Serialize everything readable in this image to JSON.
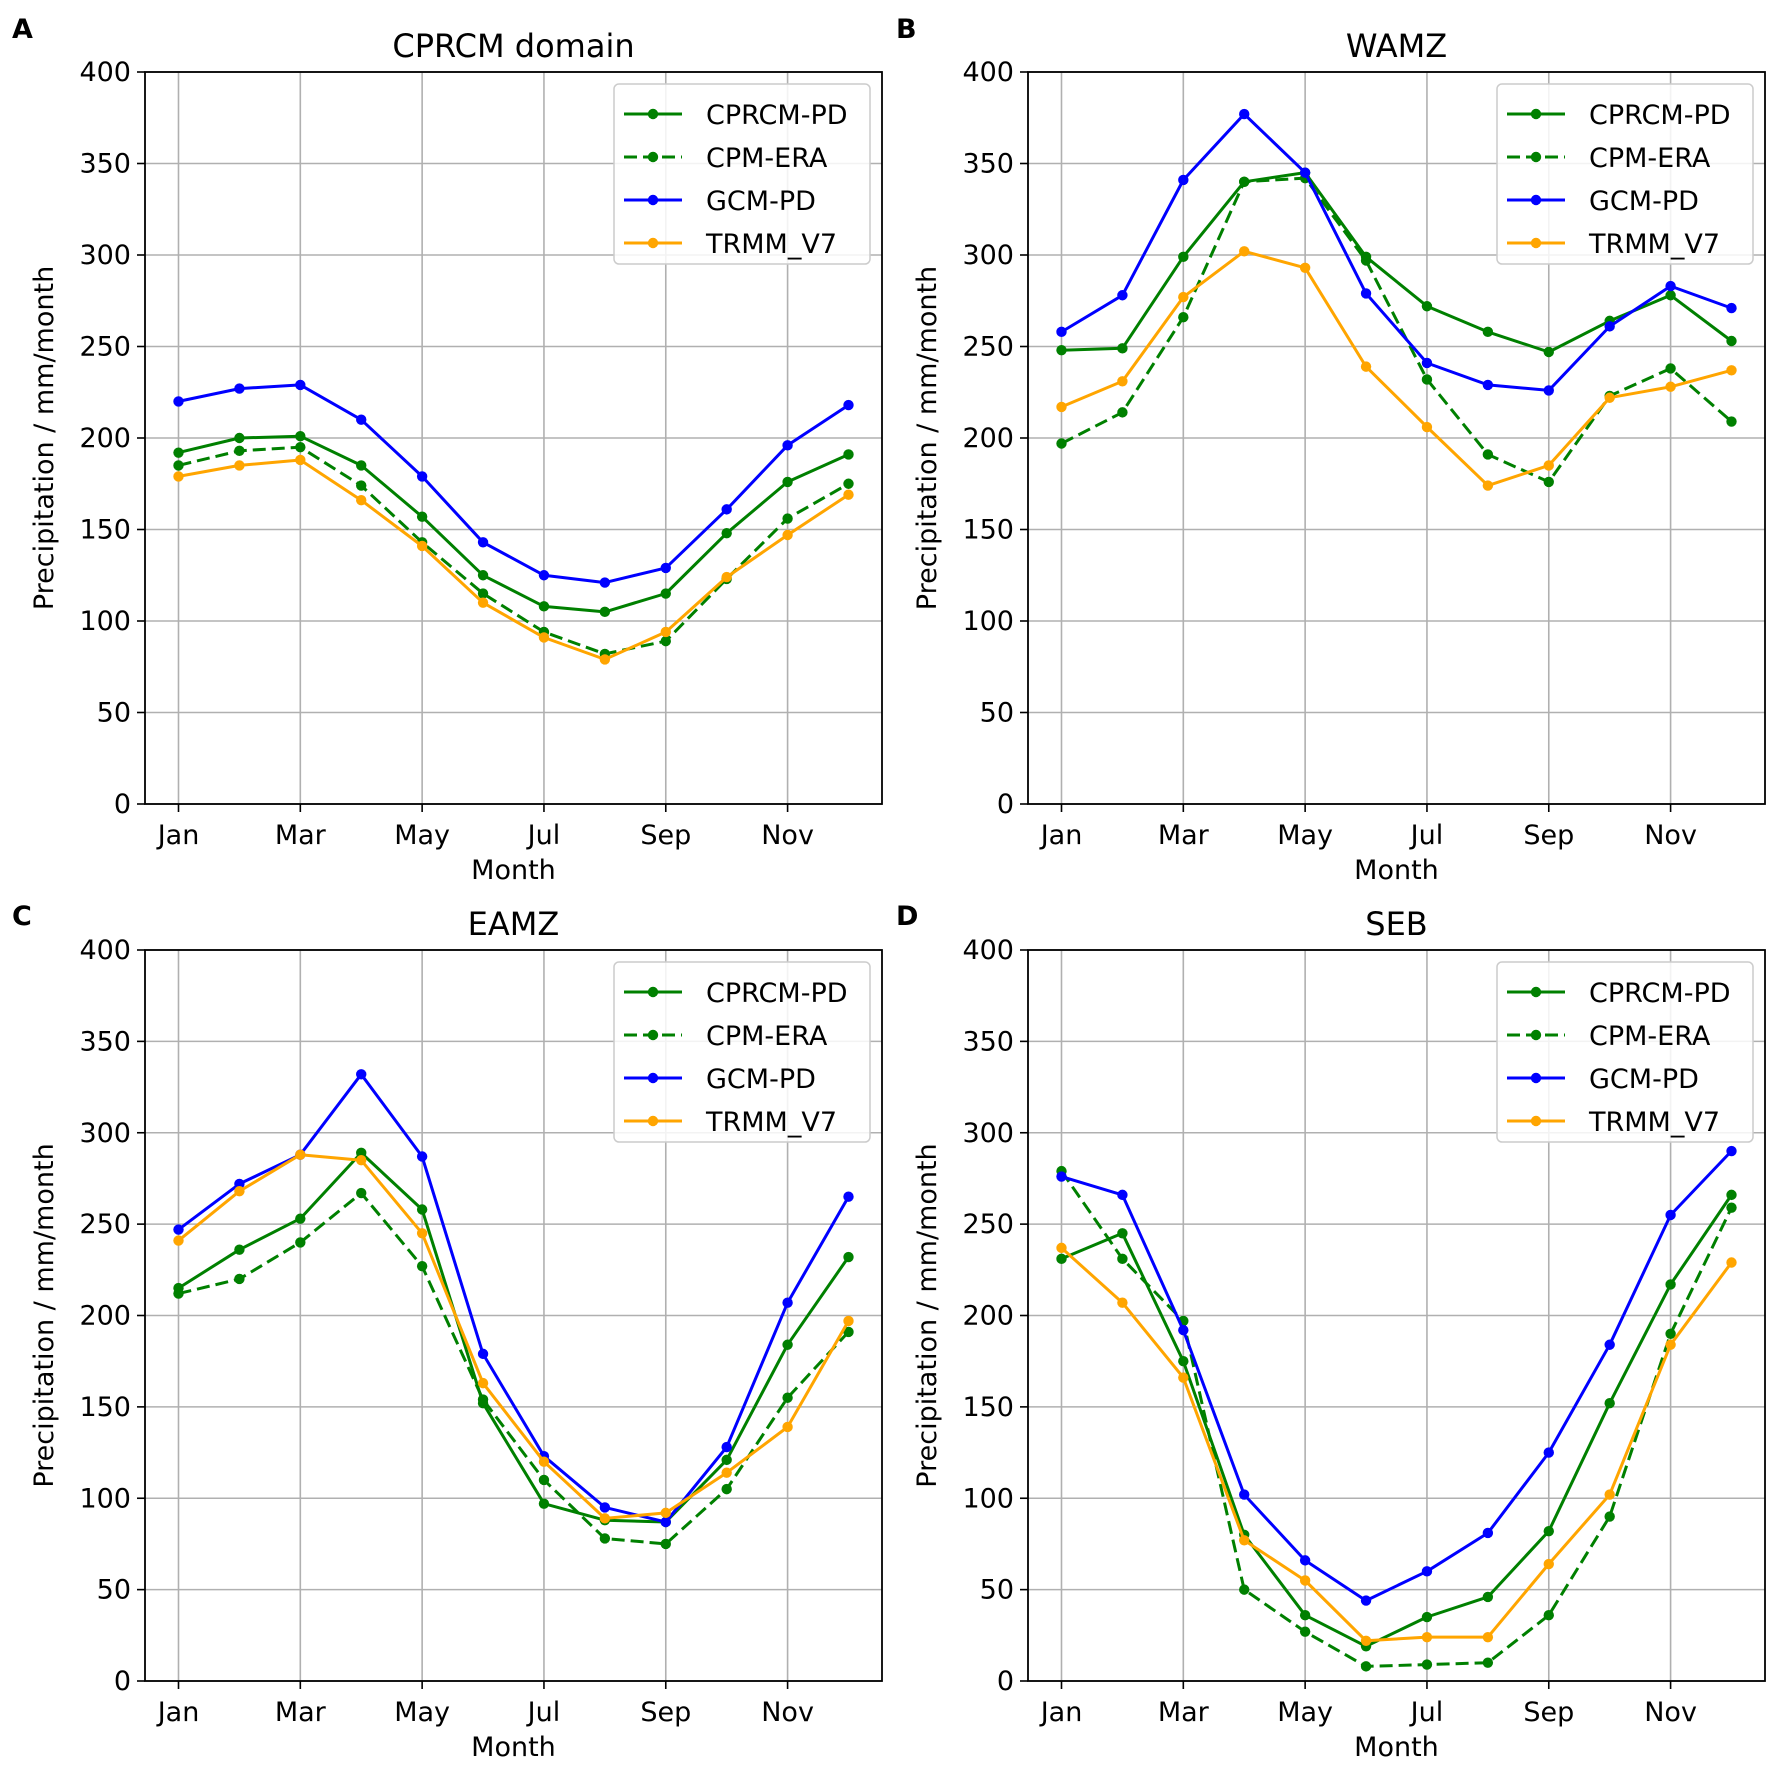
{
  "chart_data": [
    {
      "type": "line",
      "panel_label": "A",
      "title": "CPRCM domain",
      "xlabel": "Month",
      "ylabel": "Precipitation / mm/month",
      "ylim": [
        0,
        400
      ],
      "yticks": [
        "0",
        "50",
        "100",
        "150",
        "200",
        "250",
        "300",
        "350",
        "400"
      ],
      "xtick_labels": [
        "Jan",
        "Mar",
        "May",
        "Jul",
        "Sep",
        "Nov"
      ],
      "months": [
        "Jan",
        "Feb",
        "Mar",
        "Apr",
        "May",
        "Jun",
        "Jul",
        "Aug",
        "Sep",
        "Oct",
        "Nov",
        "Dec"
      ],
      "legend_position": "upper right",
      "grid": true,
      "series": [
        {
          "name": "CPRCM-PD",
          "color": "#008000",
          "dashed": false,
          "values": [
            192,
            200,
            201,
            185,
            157,
            125,
            108,
            105,
            115,
            148,
            176,
            191
          ]
        },
        {
          "name": "CPM-ERA",
          "color": "#008000",
          "dashed": true,
          "values": [
            185,
            193,
            195,
            174,
            143,
            115,
            94,
            82,
            89,
            123,
            156,
            175
          ]
        },
        {
          "name": "GCM-PD",
          "color": "#0000ff",
          "dashed": false,
          "values": [
            220,
            227,
            229,
            210,
            179,
            143,
            125,
            121,
            129,
            161,
            196,
            218
          ]
        },
        {
          "name": "TRMM_V7",
          "color": "#ffa500",
          "dashed": false,
          "values": [
            179,
            185,
            188,
            166,
            141,
            110,
            91,
            79,
            94,
            124,
            147,
            169
          ]
        }
      ]
    },
    {
      "type": "line",
      "panel_label": "B",
      "title": "WAMZ",
      "xlabel": "Month",
      "ylabel": "Precipitation / mm/month",
      "ylim": [
        0,
        400
      ],
      "yticks": [
        "0",
        "50",
        "100",
        "150",
        "200",
        "250",
        "300",
        "350",
        "400"
      ],
      "xtick_labels": [
        "Jan",
        "Mar",
        "May",
        "Jul",
        "Sep",
        "Nov"
      ],
      "months": [
        "Jan",
        "Feb",
        "Mar",
        "Apr",
        "May",
        "Jun",
        "Jul",
        "Aug",
        "Sep",
        "Oct",
        "Nov",
        "Dec"
      ],
      "legend_position": "upper right",
      "grid": true,
      "series": [
        {
          "name": "CPRCM-PD",
          "color": "#008000",
          "dashed": false,
          "values": [
            248,
            249,
            299,
            340,
            345,
            299,
            272,
            258,
            247,
            264,
            278,
            253
          ]
        },
        {
          "name": "CPM-ERA",
          "color": "#008000",
          "dashed": true,
          "values": [
            197,
            214,
            266,
            340,
            342,
            297,
            232,
            191,
            176,
            223,
            238,
            209
          ]
        },
        {
          "name": "GCM-PD",
          "color": "#0000ff",
          "dashed": false,
          "values": [
            258,
            278,
            341,
            377,
            345,
            279,
            241,
            229,
            226,
            261,
            283,
            271
          ]
        },
        {
          "name": "TRMM_V7",
          "color": "#ffa500",
          "dashed": false,
          "values": [
            217,
            231,
            277,
            302,
            293,
            239,
            206,
            174,
            185,
            222,
            228,
            237
          ]
        }
      ]
    },
    {
      "type": "line",
      "panel_label": "C",
      "title": "EAMZ",
      "xlabel": "Month",
      "ylabel": "Precipitation / mm/month",
      "ylim": [
        0,
        400
      ],
      "yticks": [
        "0",
        "50",
        "100",
        "150",
        "200",
        "250",
        "300",
        "350",
        "400"
      ],
      "xtick_labels": [
        "Jan",
        "Mar",
        "May",
        "Jul",
        "Sep",
        "Nov"
      ],
      "months": [
        "Jan",
        "Feb",
        "Mar",
        "Apr",
        "May",
        "Jun",
        "Jul",
        "Aug",
        "Sep",
        "Oct",
        "Nov",
        "Dec"
      ],
      "legend_position": "upper right",
      "grid": true,
      "series": [
        {
          "name": "CPRCM-PD",
          "color": "#008000",
          "dashed": false,
          "values": [
            215,
            236,
            253,
            289,
            258,
            152,
            97,
            88,
            87,
            121,
            184,
            232
          ]
        },
        {
          "name": "CPM-ERA",
          "color": "#008000",
          "dashed": true,
          "values": [
            212,
            220,
            240,
            267,
            227,
            154,
            110,
            78,
            75,
            105,
            155,
            191
          ]
        },
        {
          "name": "GCM-PD",
          "color": "#0000ff",
          "dashed": false,
          "values": [
            247,
            272,
            288,
            332,
            287,
            179,
            123,
            95,
            87,
            128,
            207,
            265
          ]
        },
        {
          "name": "TRMM_V7",
          "color": "#ffa500",
          "dashed": false,
          "values": [
            241,
            268,
            288,
            285,
            245,
            163,
            120,
            89,
            92,
            114,
            139,
            197
          ]
        }
      ]
    },
    {
      "type": "line",
      "panel_label": "D",
      "title": "SEB",
      "xlabel": "Month",
      "ylabel": "Precipitation / mm/month",
      "ylim": [
        0,
        400
      ],
      "yticks": [
        "0",
        "50",
        "100",
        "150",
        "200",
        "250",
        "300",
        "350",
        "400"
      ],
      "xtick_labels": [
        "Jan",
        "Mar",
        "May",
        "Jul",
        "Sep",
        "Nov"
      ],
      "months": [
        "Jan",
        "Feb",
        "Mar",
        "Apr",
        "May",
        "Jun",
        "Jul",
        "Aug",
        "Sep",
        "Oct",
        "Nov",
        "Dec"
      ],
      "legend_position": "upper right",
      "grid": true,
      "series": [
        {
          "name": "CPRCM-PD",
          "color": "#008000",
          "dashed": false,
          "values": [
            231,
            245,
            175,
            80,
            36,
            19,
            35,
            46,
            82,
            152,
            217,
            266
          ]
        },
        {
          "name": "CPM-ERA",
          "color": "#008000",
          "dashed": true,
          "values": [
            279,
            231,
            197,
            50,
            27,
            8,
            9,
            10,
            36,
            90,
            190,
            259
          ]
        },
        {
          "name": "GCM-PD",
          "color": "#0000ff",
          "dashed": false,
          "values": [
            276,
            266,
            192,
            102,
            66,
            44,
            60,
            81,
            125,
            184,
            255,
            290
          ]
        },
        {
          "name": "TRMM_V7",
          "color": "#ffa500",
          "dashed": false,
          "values": [
            237,
            207,
            166,
            77,
            55,
            22,
            24,
            24,
            64,
            102,
            184,
            229
          ]
        }
      ]
    }
  ]
}
